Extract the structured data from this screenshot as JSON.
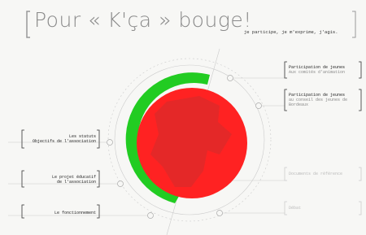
{
  "header": {
    "title": "Pour « K'ça » bouge!",
    "tagline": "je participe, je m'exprime, j'agis."
  },
  "left_menu": [
    {
      "title": "Les statuts",
      "subtitle": "Objectifs de l'association"
    },
    {
      "title": "Le projet éducatif",
      "subtitle": "de l'association"
    },
    {
      "title": "Le fonctionnement"
    }
  ],
  "right_menu": [
    {
      "title": "Participation de jeunes",
      "subtitle": "Aux comités d'animation"
    },
    {
      "title": "Participation de jeunes",
      "subtitle": "au conseil des jeunes de Bordeaux"
    },
    {
      "title": "Documents de référence"
    },
    {
      "title": "Débat"
    }
  ]
}
